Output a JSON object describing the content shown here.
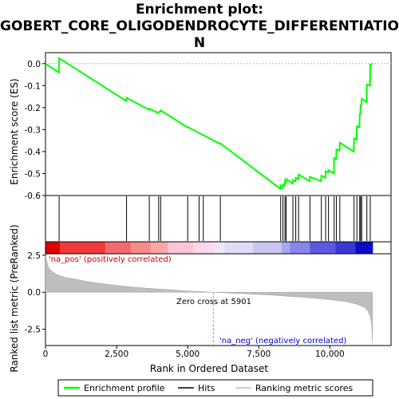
{
  "title_lines": [
    "Enrichment plot:",
    "GOBERT_CORE_OLIGODENDROCYTE_DIFFERENTIATIO",
    "N"
  ],
  "chart_data": {
    "type": "line",
    "x_label": "Rank in Ordered Dataset",
    "x_ticks": [
      "0",
      "2,500",
      "5,000",
      "7,500",
      "10,000"
    ],
    "x_tick_values": [
      0,
      2500,
      5000,
      7500,
      10000
    ],
    "x_range": [
      0,
      11500
    ],
    "top_panel": {
      "ylabel": "Enrichment score (ES)",
      "ylim": [
        -0.6,
        0.05
      ],
      "y_ticks": [
        "0.0",
        "-0.1",
        "-0.2",
        "-0.3",
        "-0.4",
        "-0.5",
        "-0.6"
      ],
      "y_tick_values": [
        0.0,
        -0.1,
        -0.2,
        -0.3,
        -0.4,
        -0.5,
        -0.6
      ],
      "series_name": "Enrichment profile",
      "color": "#00ff00",
      "hits": [
        480,
        2850,
        3650,
        3980,
        4050,
        5000,
        5400,
        5550,
        6150,
        8270,
        8350,
        8420,
        8460,
        8700,
        8800,
        8900,
        9300,
        9700,
        9850,
        9950,
        10150,
        10230,
        10350,
        10850,
        10950,
        11050,
        11080,
        11120,
        11300,
        11420
      ],
      "es_points": [
        [
          0,
          0.0
        ],
        [
          470,
          -0.04
        ],
        [
          480,
          0.025
        ],
        [
          2840,
          -0.17
        ],
        [
          2850,
          -0.155
        ],
        [
          3640,
          -0.21
        ],
        [
          3650,
          -0.205
        ],
        [
          3970,
          -0.225
        ],
        [
          3980,
          -0.22
        ],
        [
          4040,
          -0.218
        ],
        [
          4050,
          -0.213
        ],
        [
          4990,
          -0.29
        ],
        [
          5000,
          -0.288
        ],
        [
          5390,
          -0.315
        ],
        [
          5550,
          -0.325
        ],
        [
          6140,
          -0.365
        ],
        [
          6150,
          -0.363
        ],
        [
          8260,
          -0.57
        ],
        [
          8270,
          -0.555
        ],
        [
          8340,
          -0.565
        ],
        [
          8350,
          -0.55
        ],
        [
          8410,
          -0.555
        ],
        [
          8420,
          -0.535
        ],
        [
          8450,
          -0.54
        ],
        [
          8460,
          -0.525
        ],
        [
          8690,
          -0.545
        ],
        [
          8700,
          -0.53
        ],
        [
          8790,
          -0.535
        ],
        [
          8800,
          -0.52
        ],
        [
          8890,
          -0.525
        ],
        [
          8900,
          -0.505
        ],
        [
          9290,
          -0.535
        ],
        [
          9300,
          -0.515
        ],
        [
          9690,
          -0.535
        ],
        [
          9700,
          -0.51
        ],
        [
          9840,
          -0.52
        ],
        [
          9850,
          -0.49
        ],
        [
          9940,
          -0.495
        ],
        [
          9950,
          -0.485
        ],
        [
          10140,
          -0.5
        ],
        [
          10150,
          -0.43
        ],
        [
          10220,
          -0.435
        ],
        [
          10230,
          -0.39
        ],
        [
          10340,
          -0.395
        ],
        [
          10350,
          -0.36
        ],
        [
          10840,
          -0.4
        ],
        [
          10850,
          -0.34
        ],
        [
          10940,
          -0.345
        ],
        [
          10950,
          -0.285
        ],
        [
          11040,
          -0.29
        ],
        [
          11050,
          -0.23
        ],
        [
          11070,
          -0.23
        ],
        [
          11080,
          -0.19
        ],
        [
          11110,
          -0.19
        ],
        [
          11120,
          -0.16
        ],
        [
          11290,
          -0.175
        ],
        [
          11300,
          -0.095
        ],
        [
          11410,
          -0.1
        ],
        [
          11420,
          -0.005
        ],
        [
          11500,
          0.0
        ]
      ]
    },
    "bottom_panel": {
      "ylabel": "Ranked list metric (PreRanked)",
      "ylim": [
        -3.6,
        2.6
      ],
      "y_ticks": [
        "2.5",
        "0.0",
        "-2.5"
      ],
      "y_tick_values": [
        2.5,
        0.0,
        -2.5
      ],
      "color": "#bebebe",
      "zero_cross_label": "Zero cross at 5901",
      "zero_cross": 5901,
      "pos_label": "'na_pos' (positively correlated)",
      "neg_label": "'na_neg' (negatively correlated)",
      "metric_points": [
        [
          0,
          2.5
        ],
        [
          30,
          2.2
        ],
        [
          100,
          1.7
        ],
        [
          200,
          1.45
        ],
        [
          400,
          1.2
        ],
        [
          700,
          1.0
        ],
        [
          1000,
          0.9
        ],
        [
          1500,
          0.72
        ],
        [
          2000,
          0.58
        ],
        [
          2500,
          0.46
        ],
        [
          3000,
          0.36
        ],
        [
          3500,
          0.28
        ],
        [
          4000,
          0.21
        ],
        [
          4500,
          0.15
        ],
        [
          5000,
          0.09
        ],
        [
          5500,
          0.04
        ],
        [
          5901,
          0.0
        ],
        [
          6500,
          -0.05
        ],
        [
          7000,
          -0.1
        ],
        [
          7500,
          -0.15
        ],
        [
          8000,
          -0.2
        ],
        [
          8500,
          -0.27
        ],
        [
          9000,
          -0.33
        ],
        [
          9500,
          -0.41
        ],
        [
          10000,
          -0.5
        ],
        [
          10500,
          -0.62
        ],
        [
          10900,
          -0.78
        ],
        [
          11200,
          -1.0
        ],
        [
          11350,
          -1.3
        ],
        [
          11430,
          -1.7
        ],
        [
          11470,
          -2.2
        ],
        [
          11500,
          -3.4
        ]
      ]
    },
    "legend": [
      {
        "label": "Enrichment profile",
        "color": "#00ff00"
      },
      {
        "label": "Hits",
        "color": "#000000"
      },
      {
        "label": "Ranking metric scores",
        "color": "#bebebe"
      }
    ]
  }
}
